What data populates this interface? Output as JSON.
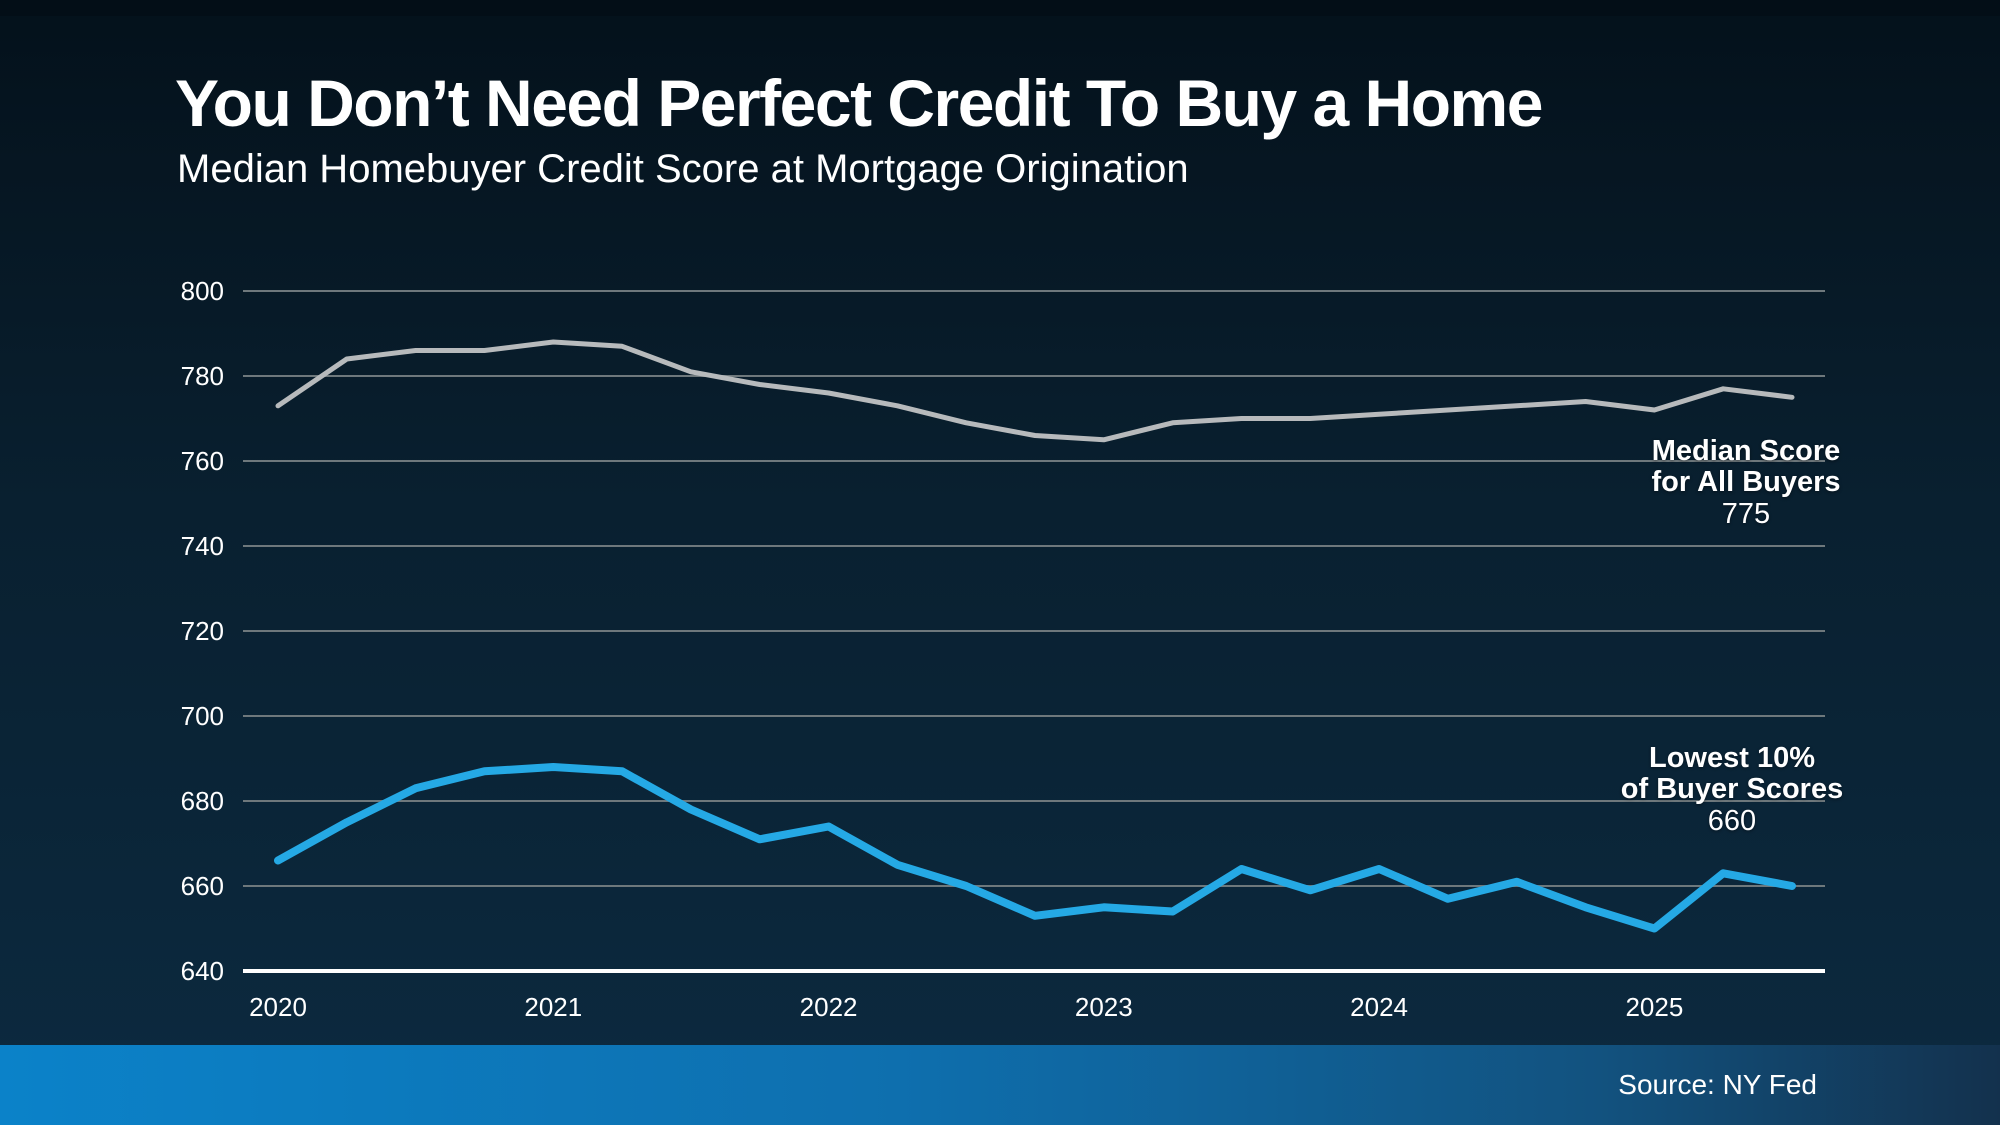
{
  "header": {
    "title": "You Don’t Need Perfect Credit To Buy a Home",
    "subtitle": "Median Homebuyer Credit Score at Mortgage Origination"
  },
  "annotations": {
    "median": {
      "line1": "Median Score",
      "line2": "for All Buyers",
      "value": "775"
    },
    "lowest": {
      "line1": "Lowest 10%",
      "line2": "of Buyer Scores",
      "value": "660"
    }
  },
  "footer": {
    "source": "Source: NY Fed"
  },
  "colors": {
    "background_top": "#04111b",
    "background_mid": "#092030",
    "background_bottom": "#0c2a40",
    "grid": "#6e787c",
    "axis": "#ffffff",
    "text": "#ffffff",
    "median_line": "#b7babc",
    "lowest_line": "#25a9e5",
    "footer_left": "#0b82c9",
    "footer_mid": "#0e6fae",
    "footer_right": "#12527f",
    "footer_end": "#13314d"
  },
  "chart_data": {
    "type": "line",
    "title": "You Don’t Need Perfect Credit To Buy a Home",
    "subtitle": "Median Homebuyer Credit Score at Mortgage Origination",
    "source": "Source: NY Fed",
    "x_frequency": "quarterly",
    "x": [
      "2020 Q1",
      "2020 Q2",
      "2020 Q3",
      "2020 Q4",
      "2021 Q1",
      "2021 Q2",
      "2021 Q3",
      "2021 Q4",
      "2022 Q1",
      "2022 Q2",
      "2022 Q3",
      "2022 Q4",
      "2023 Q1",
      "2023 Q2",
      "2023 Q3",
      "2023 Q4",
      "2024 Q1",
      "2024 Q2",
      "2024 Q3",
      "2024 Q4",
      "2025 Q1",
      "2025 Q2",
      "2025 Q3"
    ],
    "x_tick_labels": [
      "2020",
      "2021",
      "2022",
      "2023",
      "2024",
      "2025"
    ],
    "y_ticks": [
      800,
      780,
      760,
      740,
      720,
      700,
      680,
      660,
      640
    ],
    "ylim": [
      640,
      800
    ],
    "grid": true,
    "legend_position": "end-of-line labels",
    "series": [
      {
        "name": "Median Score for All Buyers",
        "color_key": "median_line",
        "end_label": "775",
        "values": [
          773,
          784,
          786,
          786,
          788,
          787,
          781,
          778,
          776,
          773,
          769,
          766,
          765,
          769,
          770,
          770,
          771,
          772,
          773,
          774,
          772,
          777,
          775
        ]
      },
      {
        "name": "Lowest 10% of Buyer Scores",
        "color_key": "lowest_line",
        "end_label": "660",
        "values": [
          666,
          675,
          683,
          687,
          688,
          687,
          678,
          671,
          674,
          665,
          660,
          653,
          655,
          654,
          664,
          659,
          664,
          657,
          661,
          655,
          650,
          663,
          660
        ]
      }
    ]
  }
}
